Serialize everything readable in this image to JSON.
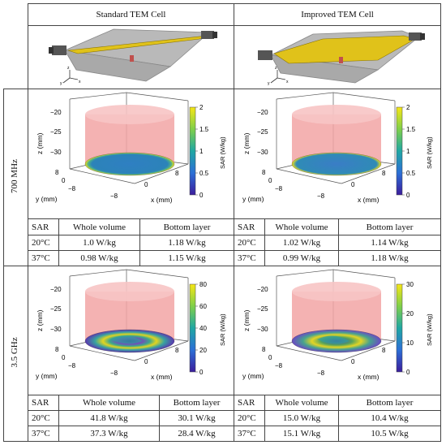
{
  "columns": {
    "standard": "Standard TEM Cell",
    "improved": "Improved TEM Cell"
  },
  "rows": {
    "r700": "700 MHz",
    "r35": "3.5 GHz"
  },
  "cell_axes": {
    "y": "y",
    "x": "x",
    "z": "z"
  },
  "plot_labels": {
    "z_axis": "z (mm)",
    "y_axis": "y (mm)",
    "x_axis": "x (mm)",
    "colorbar": "SAR (W/kg)",
    "z_ticks": [
      "−20",
      "−25",
      "−30"
    ],
    "y_ticks": [
      "8",
      "0",
      "−8"
    ],
    "x_ticks": [
      "−8",
      "0",
      "8"
    ]
  },
  "plots": [
    {
      "id": "std700",
      "cb_ticks": [
        "2",
        "1.5",
        "1",
        "0.5",
        "0"
      ]
    },
    {
      "id": "imp700",
      "cb_ticks": [
        "2",
        "1.5",
        "1",
        "0.5",
        "0"
      ]
    },
    {
      "id": "std35",
      "cb_ticks": [
        "80",
        "60",
        "40",
        "20",
        "0"
      ]
    },
    {
      "id": "imp35",
      "cb_ticks": [
        "30",
        "20",
        "10",
        "0"
      ]
    }
  ],
  "tables": [
    {
      "header": [
        "SAR",
        "Whole volume",
        "Bottom layer"
      ],
      "rows": [
        [
          "20°C",
          "1.0 W/kg",
          "1.18 W/kg"
        ],
        [
          "37°C",
          "0.98 W/kg",
          "1.15 W/kg"
        ]
      ]
    },
    {
      "header": [
        "SAR",
        "Whole volume",
        "Bottom layer"
      ],
      "rows": [
        [
          "20°C",
          "1.02 W/kg",
          "1.14 W/kg"
        ],
        [
          "37°C",
          "0.99 W/kg",
          "1.18 W/kg"
        ]
      ]
    },
    {
      "header": [
        "SAR",
        "Whole volume",
        "Bottom layer"
      ],
      "rows": [
        [
          "20°C",
          "41.8 W/kg",
          "30.1 W/kg"
        ],
        [
          "37°C",
          "37.3 W/kg",
          "28.4 W/kg"
        ]
      ]
    },
    {
      "header": [
        "SAR",
        "Whole volume",
        "Bottom layer"
      ],
      "rows": [
        [
          "20°C",
          "15.0 W/kg",
          "10.4 W/kg"
        ],
        [
          "37°C",
          "15.1 W/kg",
          "10.5 W/kg"
        ]
      ]
    }
  ]
}
